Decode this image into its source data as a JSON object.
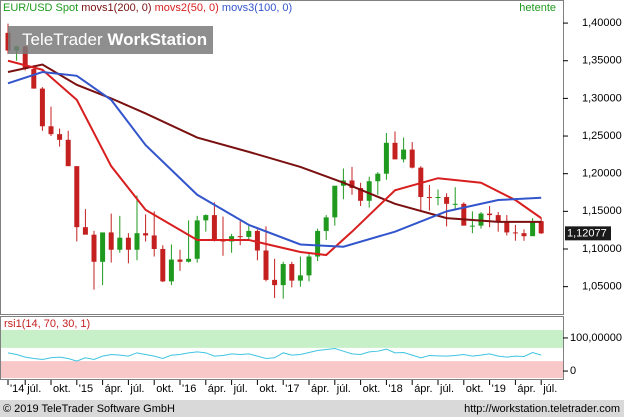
{
  "chart_data": [
    {
      "type": "candlestick",
      "title": "EUR/USD Spot",
      "interval": "hetente",
      "watermark": [
        "TeleTrader",
        "WorkStation"
      ],
      "up_color": "#1f9a1f",
      "down_color": "#c42020",
      "x": [
        "2014-05",
        "2014-06",
        "2014-07",
        "2014-08",
        "2014-09",
        "2014-10",
        "2014-11",
        "2014-12",
        "2015-01",
        "2015-02",
        "2015-03",
        "2015-04",
        "2015-05",
        "2015-06",
        "2015-07",
        "2015-08",
        "2015-09",
        "2015-10",
        "2015-11",
        "2015-12",
        "2016-01",
        "2016-02",
        "2016-03",
        "2016-04",
        "2016-05",
        "2016-06",
        "2016-07",
        "2016-08",
        "2016-09",
        "2016-10",
        "2016-11",
        "2016-12",
        "2017-01",
        "2017-02",
        "2017-03",
        "2017-04",
        "2017-05",
        "2017-06",
        "2017-07",
        "2017-08",
        "2017-09",
        "2017-10",
        "2017-11",
        "2017-12",
        "2018-01",
        "2018-02",
        "2018-03",
        "2018-04",
        "2018-05",
        "2018-06",
        "2018-07",
        "2018-08",
        "2018-09",
        "2018-10",
        "2018-11",
        "2018-12",
        "2019-01",
        "2019-02",
        "2019-03",
        "2019-04",
        "2019-05",
        "2019-06",
        "2019-07"
      ],
      "ohlc": {
        "open": [
          1.387,
          1.3635,
          1.369,
          1.339,
          1.313,
          1.263,
          1.2525,
          1.245,
          1.21,
          1.129,
          1.119,
          1.083,
          1.122,
          1.099,
          1.115,
          1.099,
          1.121,
          1.118,
          1.1,
          1.057,
          1.086,
          1.083,
          1.087,
          1.138,
          1.145,
          1.113,
          1.11,
          1.117,
          1.116,
          1.124,
          1.098,
          1.059,
          1.052,
          1.08,
          1.058,
          1.065,
          1.09,
          1.124,
          1.142,
          1.184,
          1.191,
          1.181,
          1.164,
          1.19,
          1.2,
          1.241,
          1.219,
          1.232,
          1.208,
          1.169,
          1.168,
          1.169,
          1.16,
          1.16,
          1.131,
          1.131,
          1.147,
          1.145,
          1.137,
          1.122,
          1.121,
          1.117,
          1.137
        ],
        "high": [
          1.3993,
          1.37,
          1.37,
          1.344,
          1.315,
          1.289,
          1.26,
          1.257,
          1.21,
          1.153,
          1.124,
          1.12,
          1.147,
          1.144,
          1.121,
          1.171,
          1.146,
          1.15,
          1.105,
          1.106,
          1.099,
          1.138,
          1.144,
          1.146,
          1.162,
          1.143,
          1.12,
          1.137,
          1.133,
          1.126,
          1.13,
          1.087,
          1.083,
          1.083,
          1.09,
          1.095,
          1.127,
          1.145,
          1.178,
          1.207,
          1.209,
          1.188,
          1.196,
          1.202,
          1.254,
          1.256,
          1.248,
          1.242,
          1.21,
          1.185,
          1.179,
          1.174,
          1.182,
          1.162,
          1.15,
          1.149,
          1.157,
          1.149,
          1.145,
          1.132,
          1.126,
          1.141,
          1.141
        ],
        "low": [
          1.359,
          1.35,
          1.337,
          1.313,
          1.257,
          1.25,
          1.236,
          1.21,
          1.11,
          1.12,
          1.046,
          1.052,
          1.082,
          1.095,
          1.081,
          1.085,
          1.11,
          1.09,
          1.056,
          1.052,
          1.071,
          1.082,
          1.082,
          1.123,
          1.11,
          1.091,
          1.095,
          1.105,
          1.112,
          1.085,
          1.057,
          1.035,
          1.034,
          1.049,
          1.05,
          1.057,
          1.084,
          1.112,
          1.131,
          1.166,
          1.172,
          1.157,
          1.155,
          1.172,
          1.192,
          1.22,
          1.215,
          1.207,
          1.151,
          1.151,
          1.158,
          1.13,
          1.152,
          1.132,
          1.121,
          1.127,
          1.129,
          1.123,
          1.118,
          1.111,
          1.111,
          1.119,
          1.12
        ],
        "close": [
          1.3635,
          1.369,
          1.339,
          1.313,
          1.263,
          1.2525,
          1.245,
          1.21,
          1.129,
          1.119,
          1.083,
          1.122,
          1.099,
          1.115,
          1.099,
          1.121,
          1.118,
          1.1,
          1.057,
          1.086,
          1.083,
          1.087,
          1.138,
          1.145,
          1.113,
          1.11,
          1.117,
          1.116,
          1.124,
          1.098,
          1.059,
          1.052,
          1.08,
          1.058,
          1.065,
          1.09,
          1.124,
          1.142,
          1.184,
          1.191,
          1.181,
          1.164,
          1.19,
          1.2,
          1.241,
          1.219,
          1.232,
          1.208,
          1.169,
          1.168,
          1.169,
          1.16,
          1.16,
          1.131,
          1.131,
          1.147,
          1.145,
          1.137,
          1.122,
          1.121,
          1.117,
          1.137,
          1.12077
        ]
      },
      "close_label": "1,12077",
      "overlays": [
        {
          "name": "movs1(200, 0)",
          "color": "#7a1010",
          "x": [
            "2014-05",
            "2014-09",
            "2015-01",
            "2015-05",
            "2015-09",
            "2016-03",
            "2016-09",
            "2017-03",
            "2017-08",
            "2018-02",
            "2018-08",
            "2019-02",
            "2019-07"
          ],
          "values": [
            1.335,
            1.345,
            1.318,
            1.3,
            1.28,
            1.248,
            1.229,
            1.209,
            1.188,
            1.16,
            1.141,
            1.136,
            1.136
          ]
        },
        {
          "name": "movs2(50, 0)",
          "color": "#d81e1e",
          "x": [
            "2014-05",
            "2014-09",
            "2015-01",
            "2015-05",
            "2015-09",
            "2016-03",
            "2016-09",
            "2017-03",
            "2017-06",
            "2017-09",
            "2018-02",
            "2018-07",
            "2018-12",
            "2019-04",
            "2019-07"
          ],
          "values": [
            1.35,
            1.338,
            1.298,
            1.21,
            1.152,
            1.112,
            1.112,
            1.096,
            1.092,
            1.123,
            1.178,
            1.194,
            1.188,
            1.165,
            1.141
          ]
        },
        {
          "name": "movs3(100, 0)",
          "color": "#3355cc",
          "x": [
            "2014-05",
            "2014-09",
            "2015-01",
            "2015-05",
            "2015-09",
            "2016-03",
            "2016-09",
            "2017-03",
            "2017-08",
            "2018-02",
            "2018-08",
            "2019-02",
            "2019-07"
          ],
          "values": [
            1.32,
            1.335,
            1.33,
            1.298,
            1.238,
            1.172,
            1.132,
            1.106,
            1.103,
            1.123,
            1.15,
            1.165,
            1.168
          ]
        }
      ],
      "ylim": [
        1.015,
        1.428
      ],
      "yticks": [
        {
          "value": 1.05,
          "label": "1,05000"
        },
        {
          "value": 1.1,
          "label": "1,10000"
        },
        {
          "value": 1.15,
          "label": "1,15000"
        },
        {
          "value": 1.2,
          "label": "1,20000"
        },
        {
          "value": 1.25,
          "label": "1,25000"
        },
        {
          "value": 1.3,
          "label": "1,30000"
        },
        {
          "value": 1.35,
          "label": "1,35000"
        },
        {
          "value": 1.4,
          "label": "1,40000"
        }
      ],
      "xticks": [
        {
          "value": "2014-05",
          "label": "'14"
        },
        {
          "value": "2014-07",
          "label": "júl."
        },
        {
          "value": "2014-10",
          "label": "okt."
        },
        {
          "value": "2015-01",
          "label": "'15"
        },
        {
          "value": "2015-04",
          "label": "ápr."
        },
        {
          "value": "2015-07",
          "label": "júl."
        },
        {
          "value": "2015-10",
          "label": "okt."
        },
        {
          "value": "2016-01",
          "label": "'16"
        },
        {
          "value": "2016-04",
          "label": "ápr."
        },
        {
          "value": "2016-07",
          "label": "júl."
        },
        {
          "value": "2016-10",
          "label": "okt."
        },
        {
          "value": "2017-01",
          "label": "'17"
        },
        {
          "value": "2017-04",
          "label": "ápr."
        },
        {
          "value": "2017-07",
          "label": "júl."
        },
        {
          "value": "2017-10",
          "label": "okt."
        },
        {
          "value": "2018-01",
          "label": "'18"
        },
        {
          "value": "2018-04",
          "label": "ápr."
        },
        {
          "value": "2018-07",
          "label": "júl."
        },
        {
          "value": "2018-10",
          "label": "okt."
        },
        {
          "value": "2019-01",
          "label": "'19"
        },
        {
          "value": "2019-04",
          "label": "ápr."
        },
        {
          "value": "2019-07",
          "label": "júl."
        }
      ]
    },
    {
      "type": "line",
      "title": "rsi1(14, 70, 30, 1)",
      "color": "#40c4e0",
      "values": [
        55,
        50,
        42,
        38,
        35,
        40,
        42,
        38,
        30,
        40,
        35,
        45,
        50,
        48,
        45,
        55,
        50,
        45,
        38,
        48,
        50,
        55,
        58,
        55,
        45,
        47,
        52,
        50,
        52,
        45,
        38,
        40,
        55,
        48,
        50,
        56,
        62,
        65,
        68,
        60,
        52,
        50,
        58,
        60,
        66,
        55,
        56,
        48,
        40,
        47,
        46,
        45,
        47,
        50,
        45,
        48,
        52,
        45,
        42,
        45,
        44,
        56,
        48
      ],
      "bands": [
        30,
        70
      ],
      "band_colors": [
        "#f8c8c8",
        "#c8f0c8"
      ],
      "ylim": [
        -21,
        124
      ],
      "yticks": [
        0,
        {
          "value": 100,
          "label": "100,00000"
        }
      ]
    }
  ],
  "footer": {
    "copyright": "© 2019 TeleTrader Software GmbH",
    "url": "http://workstation.teletrader.com"
  }
}
